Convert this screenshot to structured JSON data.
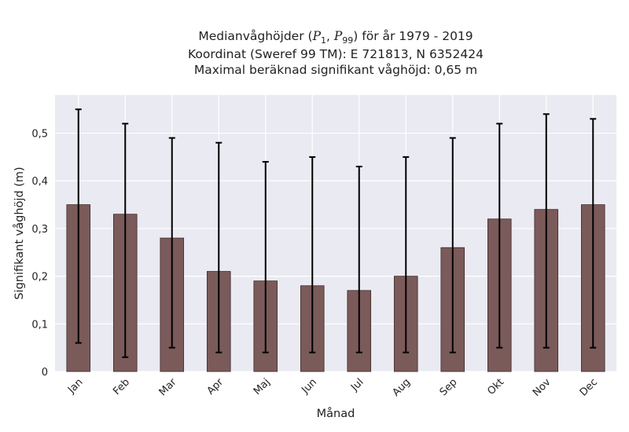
{
  "chart_data": {
    "type": "bar",
    "title_lines": [
      [
        "Medianvåghöjder (",
        {
          "v": "P"
        },
        {
          "sub": "1"
        },
        ", ",
        {
          "v": "P"
        },
        {
          "sub": "99"
        },
        ") för år 1979 - 2019"
      ],
      [
        "Koordinat (Sweref 99 TM): E 721813, N 6352424"
      ],
      [
        "Maximal beräknad signifikant våghöjd: 0,65 m"
      ]
    ],
    "xlabel": "Månad",
    "ylabel": "Signifikant våghöjd (m)",
    "categories": [
      "Jan",
      "Feb",
      "Mar",
      "Apr",
      "Maj",
      "Jun",
      "Jul",
      "Aug",
      "Sep",
      "Okt",
      "Nov",
      "Dec"
    ],
    "series": [
      {
        "values": [
          0.35,
          0.33,
          0.28,
          0.21,
          0.19,
          0.18,
          0.17,
          0.2,
          0.26,
          0.32,
          0.34,
          0.35
        ],
        "p1": [
          0.06,
          0.03,
          0.05,
          0.04,
          0.04,
          0.04,
          0.04,
          0.04,
          0.04,
          0.05,
          0.05,
          0.05
        ],
        "p99": [
          0.55,
          0.52,
          0.49,
          0.48,
          0.44,
          0.45,
          0.43,
          0.45,
          0.49,
          0.52,
          0.54,
          0.53
        ]
      }
    ],
    "ylim": [
      0,
      0.58
    ],
    "yticks": [
      0,
      0.1,
      0.2,
      0.3,
      0.4,
      0.5
    ],
    "ytick_labels": [
      "0",
      "0,1",
      "0,2",
      "0,3",
      "0,4",
      "0,5"
    ],
    "grid": true,
    "colors": {
      "bar": "#7b5a5a",
      "bar_edge": "#3e2c2c",
      "errorbar": "#000000",
      "plot_background": "#eaeaf2",
      "grid": "#ffffff"
    }
  }
}
